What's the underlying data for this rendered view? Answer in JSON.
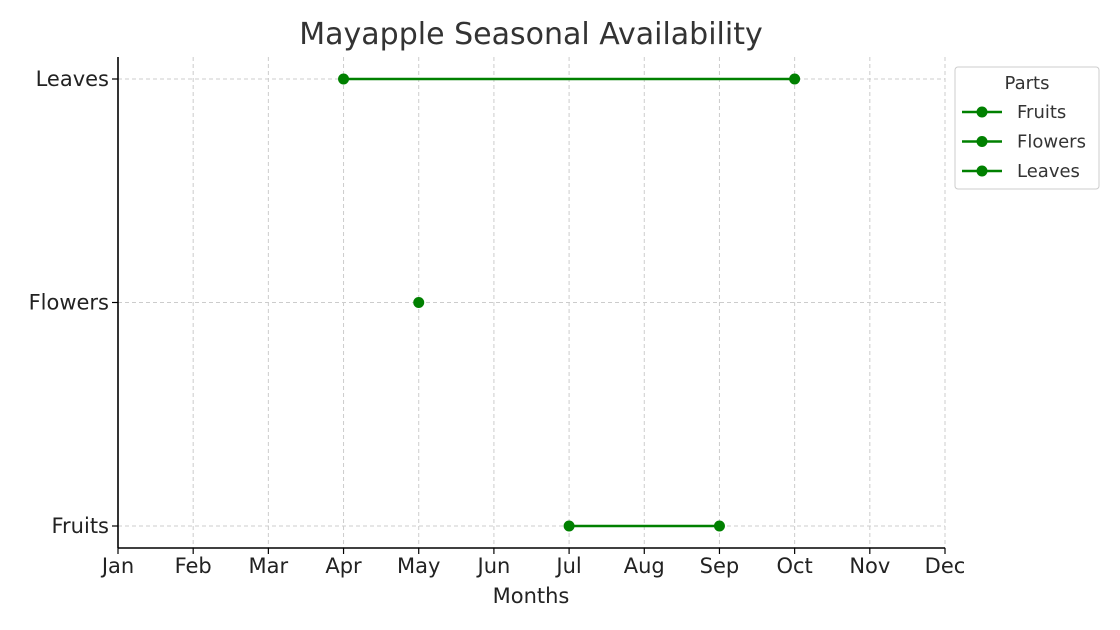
{
  "chart_data": {
    "type": "line",
    "title": "Mayapple Seasonal Availability",
    "xlabel": "Months",
    "ylabel": "",
    "x_ticks": [
      "Jan",
      "Feb",
      "Mar",
      "Apr",
      "May",
      "Jun",
      "Jul",
      "Aug",
      "Sep",
      "Oct",
      "Nov",
      "Dec"
    ],
    "y_categories": [
      "Fruits",
      "Flowers",
      "Leaves"
    ],
    "xlim": [
      "Jan",
      "Dec"
    ],
    "grid": true,
    "legend": {
      "title": "Parts",
      "placement": "top-right, outside plot"
    },
    "series": [
      {
        "name": "Fruits",
        "category": "Fruits",
        "start": "Jul",
        "end": "Sep",
        "color": "#008000"
      },
      {
        "name": "Flowers",
        "category": "Flowers",
        "start": "May",
        "end": "May",
        "color": "#008000"
      },
      {
        "name": "Leaves",
        "category": "Leaves",
        "start": "Apr",
        "end": "Oct",
        "color": "#008000"
      }
    ]
  }
}
